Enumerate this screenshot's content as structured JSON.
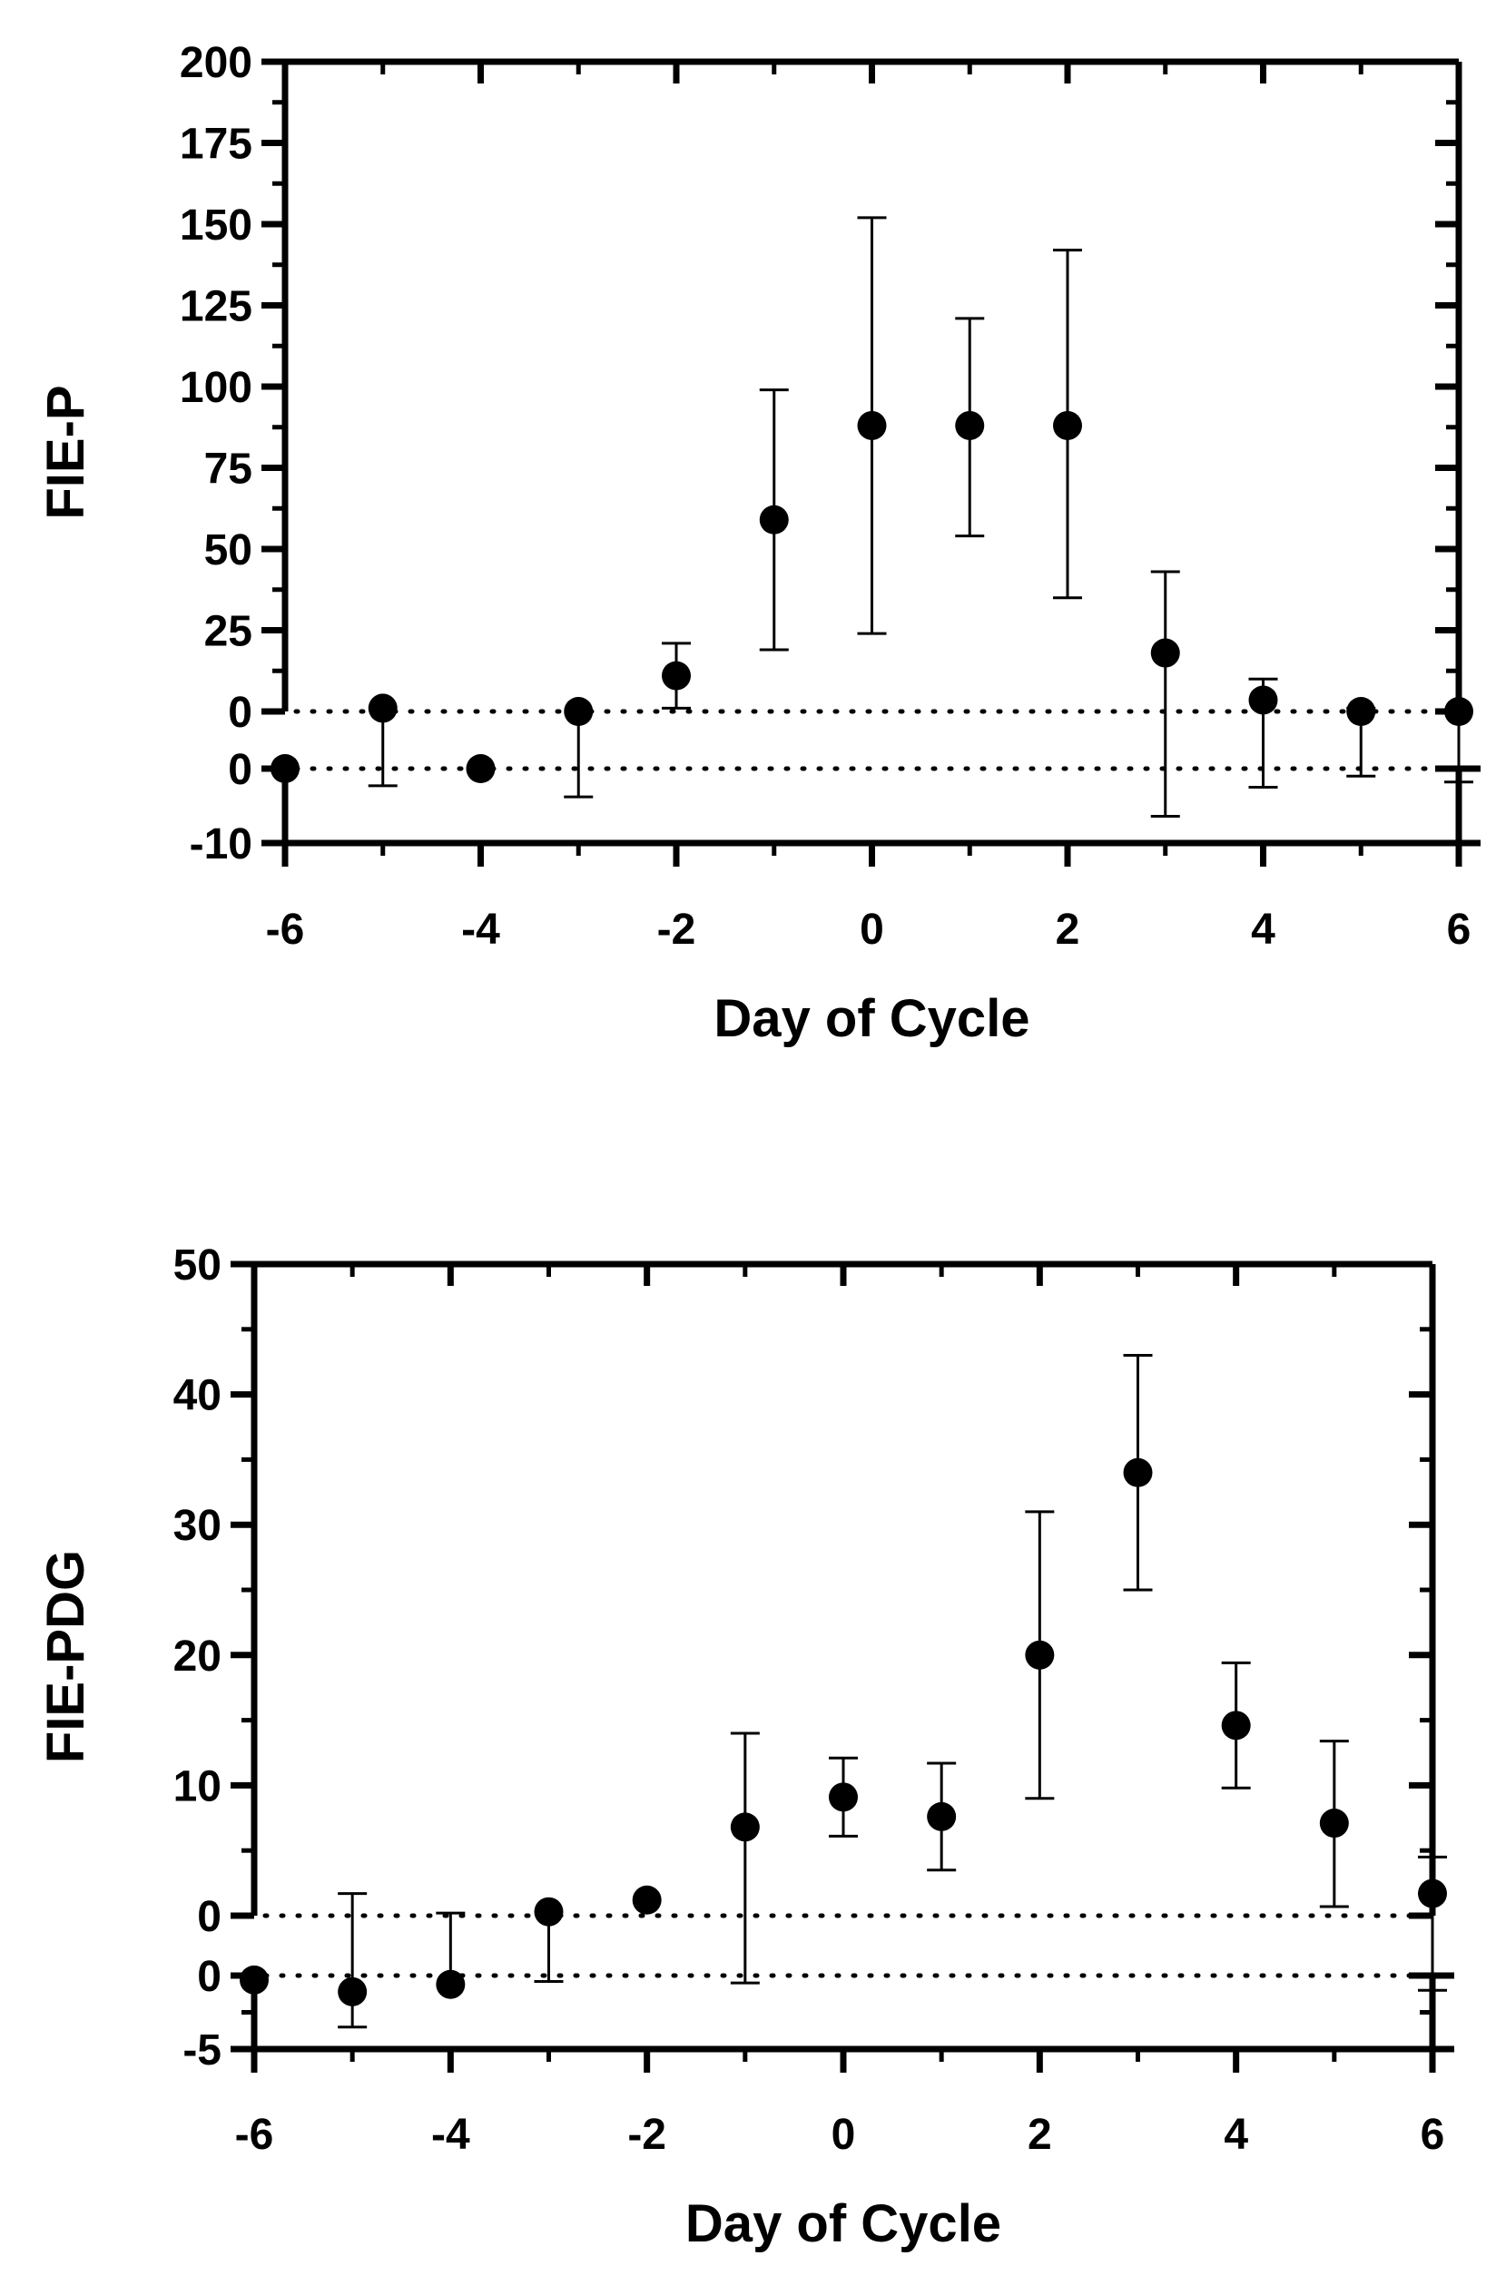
{
  "chart_data": [
    {
      "type": "scatter",
      "id": "fie-p",
      "ylabel": "FIE-P",
      "xlabel": "Day of Cycle",
      "x_ticks": [
        -6,
        -4,
        -2,
        0,
        2,
        4,
        6
      ],
      "xlim": [
        -6,
        6
      ],
      "upper_segment": {
        "ylim": [
          0,
          200
        ],
        "ticks": [
          0,
          25,
          50,
          75,
          100,
          125,
          150,
          175,
          200
        ]
      },
      "lower_segment": {
        "ylim": [
          -10,
          0
        ],
        "ticks": [
          0,
          -10
        ]
      },
      "reference_line_y": 0,
      "points": [
        {
          "x": -6,
          "y": 0,
          "err_low": 0,
          "err_high": 0,
          "segment": "lower"
        },
        {
          "x": -5,
          "y": 1,
          "err_low": -2.3,
          "err_high": 1,
          "segment": "upper"
        },
        {
          "x": -4,
          "y": 0,
          "err_low": 0,
          "err_high": 0,
          "segment": "lower"
        },
        {
          "x": -3,
          "y": 0,
          "err_low": -3.8,
          "err_high": 0,
          "segment": "upper"
        },
        {
          "x": -2,
          "y": 11,
          "err_low": 1,
          "err_high": 21,
          "segment": "upper"
        },
        {
          "x": -1,
          "y": 59,
          "err_low": 19,
          "err_high": 99,
          "segment": "upper"
        },
        {
          "x": 0,
          "y": 88,
          "err_low": 24,
          "err_high": 152,
          "segment": "upper"
        },
        {
          "x": 1,
          "y": 88,
          "err_low": 54,
          "err_high": 121,
          "segment": "upper"
        },
        {
          "x": 2,
          "y": 88,
          "err_low": 35,
          "err_high": 142,
          "segment": "upper"
        },
        {
          "x": 3,
          "y": 18,
          "err_low": -6.4,
          "err_high": 43,
          "segment": "upper"
        },
        {
          "x": 4,
          "y": 3.5,
          "err_low": -2.5,
          "err_high": 10,
          "segment": "upper"
        },
        {
          "x": 5,
          "y": 0,
          "err_low": -1,
          "err_high": 1,
          "segment": "upper"
        },
        {
          "x": 6,
          "y": 0,
          "err_low": -1.8,
          "err_high": 0,
          "segment": "upper"
        }
      ]
    },
    {
      "type": "scatter",
      "id": "fie-pdg",
      "ylabel": "FIE-PDG",
      "xlabel": "Day of Cycle",
      "x_ticks": [
        -6,
        -4,
        -2,
        0,
        2,
        4,
        6
      ],
      "xlim": [
        -6,
        6
      ],
      "upper_segment": {
        "ylim": [
          0,
          50
        ],
        "ticks": [
          0,
          10,
          20,
          30,
          40,
          50
        ]
      },
      "lower_segment": {
        "ylim": [
          -5,
          0
        ],
        "ticks": [
          0,
          -5
        ]
      },
      "reference_line_y": 0,
      "points": [
        {
          "x": -6,
          "y": -0.3,
          "err_low": -0.3,
          "err_high": -0.3,
          "segment": "lower"
        },
        {
          "x": -5,
          "y": -1.1,
          "err_low": -3.5,
          "err_high": 1.7,
          "segment": "lower"
        },
        {
          "x": -4,
          "y": -0.6,
          "err_low": -0.6,
          "err_high": 0.2,
          "segment": "lower"
        },
        {
          "x": -3,
          "y": 0.3,
          "err_low": -0.4,
          "err_high": 0.3,
          "segment": "upper"
        },
        {
          "x": -2,
          "y": 1.2,
          "err_low": 1.2,
          "err_high": 1.2,
          "segment": "upper"
        },
        {
          "x": -1,
          "y": 6.8,
          "err_low": -0.5,
          "err_high": 14,
          "segment": "upper"
        },
        {
          "x": 0,
          "y": 9.1,
          "err_low": 6.1,
          "err_high": 12.1,
          "segment": "upper"
        },
        {
          "x": 1,
          "y": 7.6,
          "err_low": 3.5,
          "err_high": 11.7,
          "segment": "upper"
        },
        {
          "x": 2,
          "y": 20,
          "err_low": 9,
          "err_high": 31,
          "segment": "upper"
        },
        {
          "x": 3,
          "y": 34,
          "err_low": 25,
          "err_high": 43,
          "segment": "upper"
        },
        {
          "x": 4,
          "y": 14.6,
          "err_low": 9.8,
          "err_high": 19.4,
          "segment": "upper"
        },
        {
          "x": 5,
          "y": 7.1,
          "err_low": 0.7,
          "err_high": 13.4,
          "segment": "upper"
        },
        {
          "x": 6,
          "y": 1.7,
          "err_low": -1,
          "err_high": 4.5,
          "segment": "upper"
        }
      ]
    }
  ]
}
